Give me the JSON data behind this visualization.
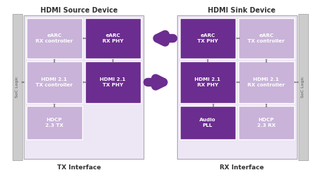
{
  "title_left": "HDMI Source Device",
  "title_right": "HDMI Sink Device",
  "label_left": "TX Interface",
  "label_right": "RX Interface",
  "soc_label": "SoC Logic",
  "bg_color": "#ffffff",
  "light_purple": "#c9b3d9",
  "dark_purple": "#6b2d8f",
  "arrow_purple": "#6b2d8f",
  "soc_gray": "#cccccc",
  "inner_bg": "#ede6f5",
  "left_blocks": [
    {
      "label": "eARC\nRX controller",
      "col": 0,
      "row": 0,
      "dark": false
    },
    {
      "label": "eARC\nRX PHY",
      "col": 1,
      "row": 0,
      "dark": true
    },
    {
      "label": "HDMI 2.1\nTX controller",
      "col": 0,
      "row": 1,
      "dark": false
    },
    {
      "label": "HDMI 2.1\nTX PHY",
      "col": 1,
      "row": 1,
      "dark": true
    },
    {
      "label": "HDCP\n2.3 TX",
      "col": 0,
      "row": 2,
      "dark": false
    }
  ],
  "right_blocks": [
    {
      "label": "eARC\nTX PHY",
      "col": 0,
      "row": 0,
      "dark": true
    },
    {
      "label": "eARC\nTX controller",
      "col": 1,
      "row": 0,
      "dark": false
    },
    {
      "label": "HDMI 2.1\nRX PHY",
      "col": 0,
      "row": 1,
      "dark": true
    },
    {
      "label": "HDMI 2.1\nRX controller",
      "col": 1,
      "row": 1,
      "dark": false
    },
    {
      "label": "Audio\nPLL",
      "col": 0,
      "row": 2,
      "dark": true
    },
    {
      "label": "HDCP\n2.3 RX",
      "col": 1,
      "row": 2,
      "dark": false
    }
  ],
  "fig_w": 4.6,
  "fig_h": 2.54,
  "dpi": 100
}
